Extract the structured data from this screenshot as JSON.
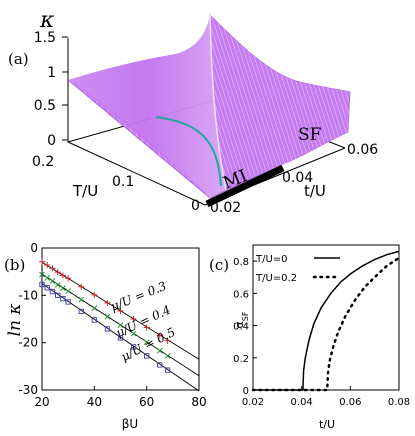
{
  "panel_labels": {
    "a": "(a)",
    "b": "(b)",
    "c": "(c)"
  },
  "colors": {
    "surface": "#c67cf0",
    "surface_line": "#e6c4f9",
    "surface_dark": "#b35ce8",
    "boundary": "#27a6a0",
    "mi": "#000000",
    "series_red": "#d4202a",
    "series_green": "#1f8f2c",
    "series_blue": "#3b3bb0"
  },
  "chart_data": [
    {
      "type": "surface",
      "zlabel": "κ",
      "xlabel": "T/U",
      "ylabel": "t/U",
      "z_ticks": [
        "0",
        "0.5",
        "1",
        "1.5"
      ],
      "x_ticks": [
        "0",
        "0.1",
        "0.2"
      ],
      "y_ticks": [
        "0.02",
        "0.04",
        "0.06"
      ],
      "zlim": [
        0,
        1.5
      ],
      "xlim": [
        0,
        0.25
      ],
      "ylim": [
        0.02,
        0.065
      ],
      "annotations": [
        "MI",
        "SF"
      ]
    },
    {
      "type": "scatter",
      "xlabel": "βU",
      "ylabel": "ln κ",
      "x_ticks": [
        "20",
        "40",
        "60",
        "80"
      ],
      "y_ticks": [
        "0",
        "-10",
        "-20",
        "-30"
      ],
      "xlim": [
        20,
        80
      ],
      "ylim": [
        -30,
        0
      ],
      "series": [
        {
          "name": "μ/U = 0.3",
          "marker": "+",
          "fit": [
            [
              20,
              -3.0
            ],
            [
              80,
              -23.5
            ]
          ],
          "x": [
            20,
            22,
            24,
            26,
            28,
            30,
            35,
            40,
            45,
            50,
            55,
            60,
            65,
            68
          ],
          "y": [
            -2.9,
            -3.6,
            -4.3,
            -5.1,
            -5.8,
            -6.4,
            -8.2,
            -9.9,
            -11.6,
            -13.3,
            -15.0,
            -16.8,
            -18.5,
            -19.6
          ]
        },
        {
          "name": "μ/U = 0.4",
          "marker": "×",
          "fit": [
            [
              20,
              -5.5
            ],
            [
              80,
              -27.0
            ]
          ],
          "x": [
            20,
            22,
            24,
            26,
            28,
            30,
            35,
            40,
            45,
            50,
            55,
            60,
            65,
            68
          ],
          "y": [
            -5.6,
            -6.3,
            -7.0,
            -7.8,
            -8.5,
            -9.1,
            -10.9,
            -12.7,
            -14.5,
            -16.3,
            -18.1,
            -19.9,
            -21.7,
            -22.8
          ]
        },
        {
          "name": "μ/U = 0.5",
          "marker": "□",
          "fit": [
            [
              20,
              -7.5
            ],
            [
              80,
              -30.2
            ]
          ],
          "x": [
            20,
            22,
            24,
            26,
            28,
            30,
            35,
            40,
            45,
            50,
            55,
            60,
            65,
            68
          ],
          "y": [
            -7.7,
            -8.4,
            -9.2,
            -10.0,
            -10.7,
            -11.4,
            -13.4,
            -15.2,
            -17.1,
            -19.0,
            -20.9,
            -22.8,
            -24.7,
            -25.8
          ]
        }
      ]
    },
    {
      "type": "line",
      "xlabel": "t/U",
      "ylabel": "α_SF",
      "x_ticks": [
        "0.02",
        "0.04",
        "0.06",
        "0.08"
      ],
      "y_ticks": [
        "0",
        "0.2",
        "0.4",
        "0.6",
        "0.8"
      ],
      "xlim": [
        0.02,
        0.08
      ],
      "ylim": [
        0,
        0.9
      ],
      "legend_position": "top-left",
      "series": [
        {
          "name": "T/U=0",
          "style": "solid",
          "x": [
            0.02,
            0.03,
            0.0405,
            0.0408,
            0.0415,
            0.043,
            0.045,
            0.048,
            0.052,
            0.056,
            0.06,
            0.065,
            0.07,
            0.075,
            0.08
          ],
          "y": [
            0,
            0,
            0,
            0.12,
            0.2,
            0.31,
            0.41,
            0.51,
            0.6,
            0.67,
            0.72,
            0.77,
            0.81,
            0.84,
            0.86
          ]
        },
        {
          "name": "T/U=0.2",
          "style": "dotted",
          "x": [
            0.02,
            0.035,
            0.0505,
            0.0508,
            0.0515,
            0.053,
            0.055,
            0.058,
            0.062,
            0.066,
            0.07,
            0.075,
            0.08
          ],
          "y": [
            0,
            0,
            0,
            0.1,
            0.18,
            0.27,
            0.36,
            0.46,
            0.56,
            0.64,
            0.7,
            0.77,
            0.82
          ]
        }
      ]
    }
  ]
}
